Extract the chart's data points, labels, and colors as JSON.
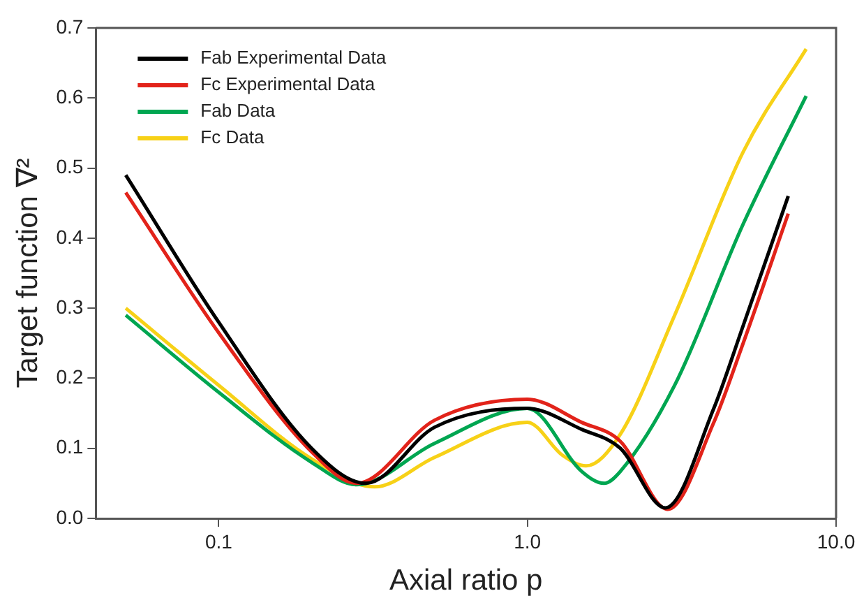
{
  "chart_data": {
    "type": "line",
    "xlabel": "Axial ratio p",
    "ylabel": "Target function ∇²",
    "log": "x",
    "xlim": [
      0.04,
      10
    ],
    "xticks": [
      {
        "value": 0.1,
        "label": "0.1"
      },
      {
        "value": 1,
        "label": "1.0"
      },
      {
        "value": 10,
        "label": "10.0"
      }
    ],
    "ylim": [
      0,
      0.7
    ],
    "yticks": [
      {
        "value": 0,
        "label": "0.0"
      },
      {
        "value": 0.1,
        "label": "0.1"
      },
      {
        "value": 0.2,
        "label": "0.2"
      },
      {
        "value": 0.3,
        "label": "0.3"
      },
      {
        "value": 0.4,
        "label": "0.4"
      },
      {
        "value": 0.5,
        "label": "0.5"
      },
      {
        "value": 0.6,
        "label": "0.6"
      },
      {
        "value": 0.7,
        "label": "0.7"
      }
    ],
    "grid": false,
    "legend": "top left",
    "marker": "none",
    "line_style": "solid",
    "series": [
      {
        "name": "Fab Experimental Data",
        "color": "#000000",
        "x": [
          0.05,
          0.1,
          0.2,
          0.3,
          0.5,
          1,
          1.5,
          2,
          2.8,
          4,
          5,
          7
        ],
        "values": [
          0.49,
          0.28,
          0.1,
          0.05,
          0.13,
          0.157,
          0.127,
          0.1,
          0.015,
          0.155,
          0.275,
          0.46
        ]
      },
      {
        "name": "Fc Experimental Data",
        "color": "#e2231a",
        "x": [
          0.05,
          0.1,
          0.2,
          0.28,
          0.5,
          1,
          1.5,
          2,
          2.85,
          4,
          5,
          7
        ],
        "values": [
          0.465,
          0.265,
          0.095,
          0.05,
          0.14,
          0.17,
          0.137,
          0.11,
          0.013,
          0.135,
          0.25,
          0.435
        ]
      },
      {
        "name": "Fab Data",
        "color": "#00a651",
        "x": [
          0.05,
          0.1,
          0.2,
          0.28,
          0.5,
          1,
          1.5,
          1.77,
          2,
          3,
          5,
          8
        ],
        "values": [
          0.29,
          0.18,
          0.08,
          0.048,
          0.107,
          0.157,
          0.067,
          0.05,
          0.067,
          0.19,
          0.42,
          0.603
        ]
      },
      {
        "name": "Fc Data",
        "color": "#f7d117",
        "x": [
          0.05,
          0.1,
          0.2,
          0.32,
          0.5,
          1,
          1.3,
          1.55,
          2,
          3,
          5,
          8
        ],
        "values": [
          0.3,
          0.19,
          0.085,
          0.045,
          0.087,
          0.137,
          0.09,
          0.075,
          0.12,
          0.29,
          0.523,
          0.67
        ]
      }
    ]
  }
}
